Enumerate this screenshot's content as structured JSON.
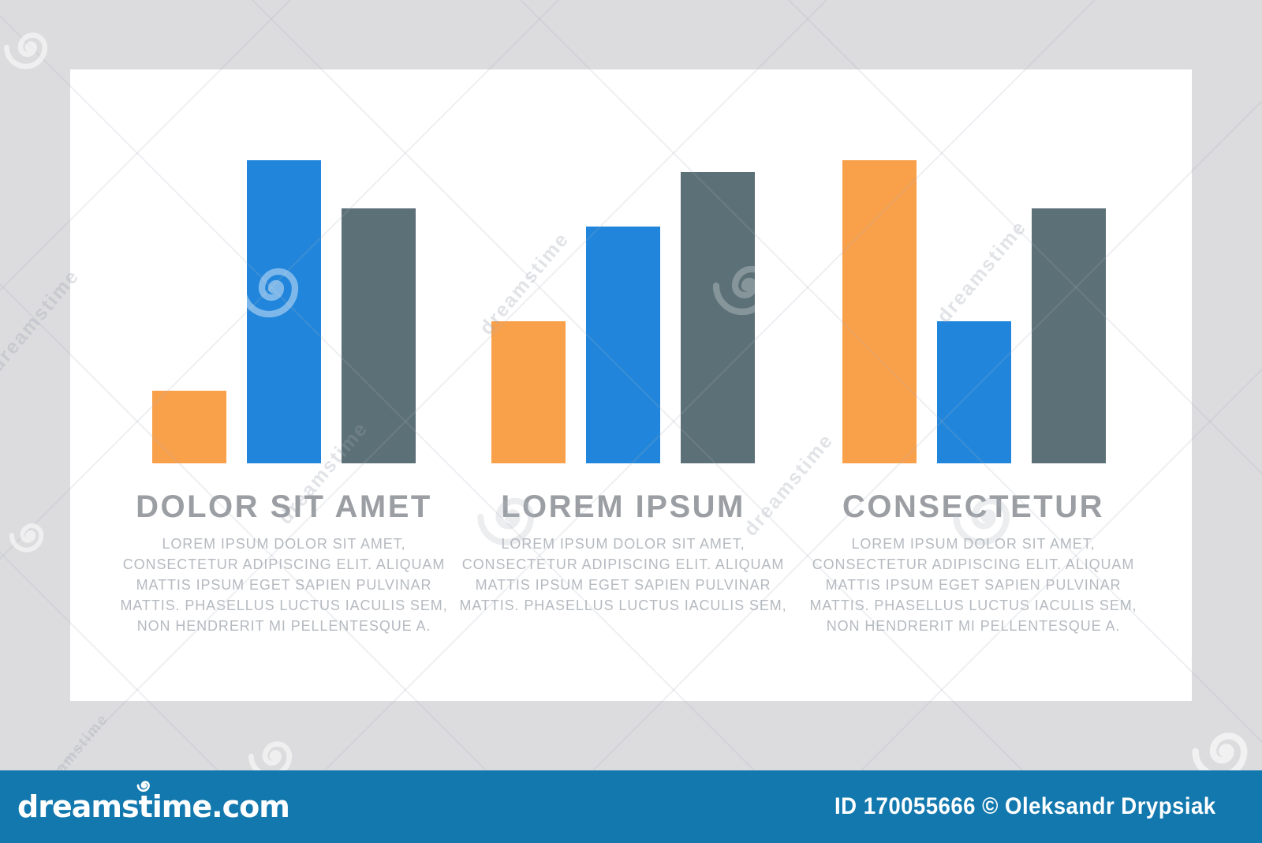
{
  "page": {
    "background_color": "#dcdcde",
    "card_color": "#ffffff"
  },
  "watermark": {
    "text": "dreamstime"
  },
  "palette": {
    "orange": "#f9a04a",
    "blue": "#2186db",
    "slate": "#5c7077"
  },
  "chart_data": [
    {
      "type": "bar",
      "title": "DOLOR SIT AMET",
      "categories": [
        "orange",
        "blue",
        "slate"
      ],
      "bars": [
        {
          "color": "orange",
          "value": 24
        },
        {
          "color": "blue",
          "value": 100
        },
        {
          "color": "slate",
          "value": 84
        }
      ],
      "ylim": [
        0,
        100
      ],
      "description_lines": [
        "LOREM IPSUM DOLOR SIT AMET,",
        "CONSECTETUR ADIPISCING ELIT. ALIQUAM",
        "MATTIS IPSUM EGET SAPIEN PULVINAR",
        "MATTIS. PHASELLUS LUCTUS IACULIS SEM,",
        "NON HENDRERIT MI PELLENTESQUE A."
      ]
    },
    {
      "type": "bar",
      "title": "LOREM IPSUM",
      "categories": [
        "orange",
        "blue",
        "slate"
      ],
      "bars": [
        {
          "color": "orange",
          "value": 47
        },
        {
          "color": "blue",
          "value": 78
        },
        {
          "color": "slate",
          "value": 96
        }
      ],
      "ylim": [
        0,
        100
      ],
      "description_lines": [
        "LOREM IPSUM DOLOR SIT AMET,",
        "CONSECTETUR ADIPISCING ELIT. ALIQUAM",
        "MATTIS IPSUM EGET SAPIEN PULVINAR",
        "MATTIS. PHASELLUS LUCTUS IACULIS SEM,"
      ]
    },
    {
      "type": "bar",
      "title": "CONSECTETUR",
      "categories": [
        "orange",
        "blue",
        "slate"
      ],
      "bars": [
        {
          "color": "orange",
          "value": 100
        },
        {
          "color": "blue",
          "value": 47
        },
        {
          "color": "slate",
          "value": 84
        }
      ],
      "ylim": [
        0,
        100
      ],
      "description_lines": [
        "LOREM IPSUM DOLOR SIT AMET,",
        "CONSECTETUR ADIPISCING ELIT. ALIQUAM",
        "MATTIS IPSUM EGET SAPIEN PULVINAR",
        "MATTIS. PHASELLUS LUCTUS IACULIS SEM,",
        "NON HENDRERIT MI PELLENTESQUE A."
      ]
    }
  ],
  "footer": {
    "logo_text": "dreamstime.com",
    "attribution": "ID 170055666 © Oleksandr Drypsiak",
    "bar_color": "#1278ae"
  }
}
